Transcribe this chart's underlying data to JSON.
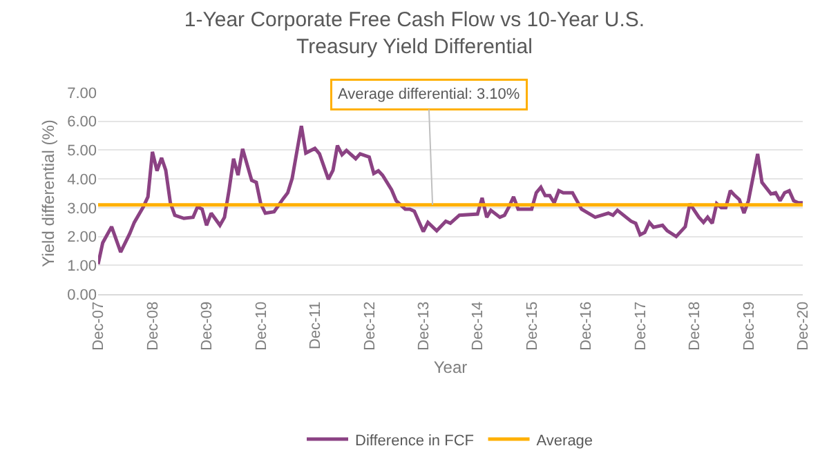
{
  "chart_data": {
    "type": "line",
    "title": "1-Year Corporate Free Cash Flow vs 10-Year U.S. Treasury Yield Differential",
    "xlabel": "Year",
    "ylabel": "Yield differential (%)",
    "x": [
      "2007-12",
      "2008-01",
      "2008-03",
      "2008-05",
      "2008-07",
      "2008-08",
      "2008-10",
      "2008-11",
      "2008-12",
      "2009-01",
      "2009-02",
      "2009-03",
      "2009-04",
      "2009-05",
      "2009-07",
      "2009-09",
      "2009-10",
      "2009-11",
      "2009-12",
      "2010-01",
      "2010-03",
      "2010-04",
      "2010-05",
      "2010-06",
      "2010-07",
      "2010-08",
      "2010-10",
      "2010-11",
      "2010-12",
      "2011-01",
      "2011-03",
      "2011-05",
      "2011-06",
      "2011-07",
      "2011-09",
      "2011-10",
      "2011-12",
      "2012-01",
      "2012-03",
      "2012-04",
      "2012-05",
      "2012-06",
      "2012-07",
      "2012-09",
      "2012-10",
      "2012-12",
      "2013-01",
      "2013-02",
      "2013-03",
      "2013-05",
      "2013-06",
      "2013-08",
      "2013-09",
      "2013-10",
      "2013-12",
      "2014-01",
      "2014-03",
      "2014-05",
      "2014-06",
      "2014-08",
      "2014-12",
      "2015-01",
      "2015-02",
      "2015-03",
      "2015-05",
      "2015-06",
      "2015-07",
      "2015-08",
      "2015-09",
      "2015-12",
      "2016-01",
      "2016-02",
      "2016-03",
      "2016-04",
      "2016-05",
      "2016-06",
      "2016-07",
      "2016-09",
      "2016-11",
      "2017-02",
      "2017-05",
      "2017-06",
      "2017-07",
      "2017-10",
      "2017-11",
      "2017-12",
      "2018-01",
      "2018-02",
      "2018-03",
      "2018-05",
      "2018-06",
      "2018-08",
      "2018-10",
      "2018-11",
      "2019-01",
      "2019-02",
      "2019-03",
      "2019-04",
      "2019-05",
      "2019-06",
      "2019-07",
      "2019-08",
      "2019-09",
      "2019-10",
      "2019-11",
      "2019-12",
      "2020-02",
      "2020-03",
      "2020-05",
      "2020-06",
      "2020-07",
      "2020-08",
      "2020-09",
      "2020-10",
      "2020-11",
      "2020-12"
    ],
    "series": [
      {
        "name": "Difference in FCF",
        "color": "#8b4283",
        "values": [
          1.04,
          1.78,
          2.34,
          1.46,
          2.1,
          2.49,
          3.03,
          3.38,
          4.94,
          4.28,
          4.73,
          4.3,
          3.17,
          2.74,
          2.63,
          2.67,
          3.03,
          2.95,
          2.39,
          2.81,
          2.39,
          2.67,
          3.59,
          4.7,
          4.13,
          5.04,
          3.95,
          3.88,
          3.14,
          2.81,
          2.86,
          3.31,
          3.52,
          4.02,
          5.84,
          4.9,
          5.06,
          4.87,
          3.99,
          4.3,
          5.16,
          4.84,
          4.99,
          4.7,
          4.87,
          4.76,
          4.19,
          4.28,
          4.13,
          3.62,
          3.24,
          2.95,
          2.95,
          2.88,
          2.17,
          2.49,
          2.2,
          2.53,
          2.46,
          2.74,
          2.78,
          3.34,
          2.67,
          2.91,
          2.67,
          2.74,
          3.03,
          3.38,
          2.95,
          2.95,
          3.52,
          3.71,
          3.42,
          3.42,
          3.17,
          3.59,
          3.52,
          3.52,
          2.95,
          2.67,
          2.81,
          2.74,
          2.91,
          2.53,
          2.46,
          2.06,
          2.14,
          2.49,
          2.32,
          2.39,
          2.2,
          2.0,
          2.34,
          3.14,
          2.67,
          2.49,
          2.67,
          2.46,
          3.14,
          3.0,
          3.0,
          3.59,
          3.42,
          3.28,
          2.81,
          3.24,
          4.87,
          3.88,
          3.48,
          3.52,
          3.24,
          3.52,
          3.59,
          3.24,
          3.17,
          3.17
        ]
      }
    ],
    "ref_lines": [
      {
        "axis": "y",
        "value": 3.1,
        "label": "Average",
        "color": "#ffb000"
      }
    ],
    "annotations": [
      {
        "text": "Average differential: 3.10%",
        "x": "2014-02",
        "y": 3.1
      }
    ],
    "xlim": [
      "2007-12",
      "2020-12"
    ],
    "xticks": [
      {
        "value": "2007-12",
        "label": "Dec-07"
      },
      {
        "value": "2008-12",
        "label": "Dec-08"
      },
      {
        "value": "2009-12",
        "label": "Dec-09"
      },
      {
        "value": "2010-12",
        "label": "Dec-10"
      },
      {
        "value": "2011-12",
        "label": "Dec-11"
      },
      {
        "value": "2012-12",
        "label": "Dec-12"
      },
      {
        "value": "2013-12",
        "label": "Dec-13"
      },
      {
        "value": "2014-12",
        "label": "Dec-14"
      },
      {
        "value": "2015-12",
        "label": "Dec-15"
      },
      {
        "value": "2016-12",
        "label": "Dec-16"
      },
      {
        "value": "2017-12",
        "label": "Dec-17"
      },
      {
        "value": "2018-12",
        "label": "Dec-18"
      },
      {
        "value": "2019-12",
        "label": "Dec-19"
      },
      {
        "value": "2020-12",
        "label": "Dec-20"
      }
    ],
    "ylim": [
      0,
      7
    ],
    "yticks": [
      {
        "value": 0,
        "label": "0.00"
      },
      {
        "value": 1,
        "label": "1.00"
      },
      {
        "value": 2,
        "label": "2.00"
      },
      {
        "value": 3,
        "label": "3.00"
      },
      {
        "value": 4,
        "label": "4.00"
      },
      {
        "value": 5,
        "label": "5.00"
      },
      {
        "value": 6,
        "label": "6.00"
      },
      {
        "value": 7,
        "label": "7.00"
      }
    ],
    "grid": "y",
    "legend": "bottom",
    "marker": "none",
    "line_style": "solid"
  }
}
